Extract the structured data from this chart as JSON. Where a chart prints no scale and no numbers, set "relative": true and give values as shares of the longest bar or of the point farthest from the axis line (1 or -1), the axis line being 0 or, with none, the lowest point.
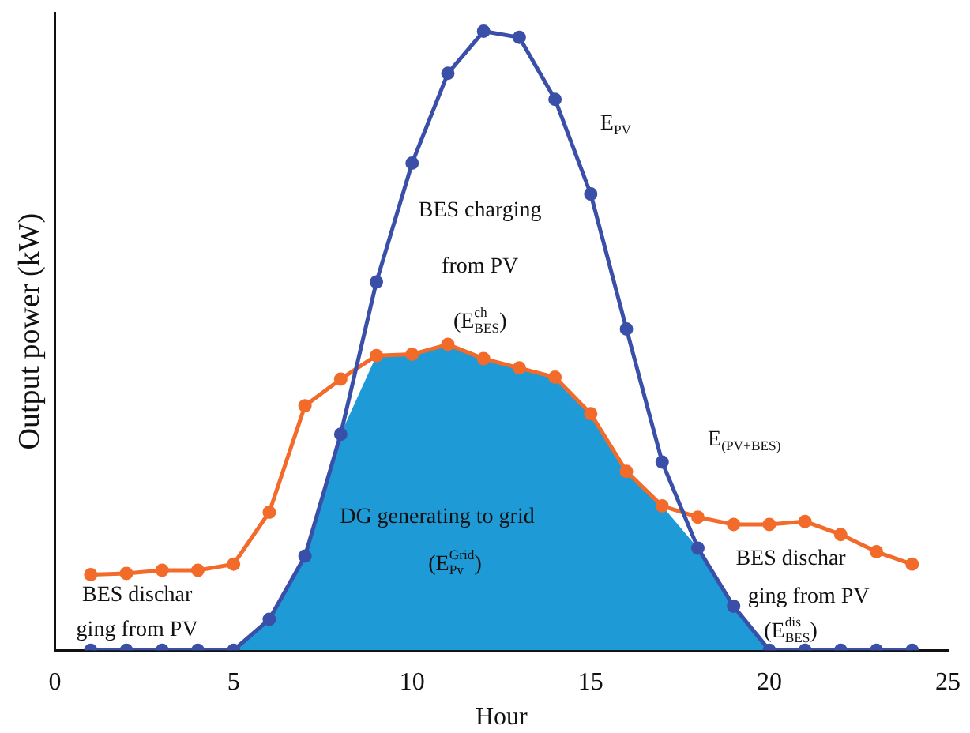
{
  "chart_data": {
    "type": "line",
    "relative": true,
    "xlabel": "Hour",
    "ylabel": "Output power (kW)",
    "xlim": [
      0,
      25
    ],
    "xticks": [
      0,
      5,
      10,
      15,
      20,
      25
    ],
    "grid": false,
    "legend": false,
    "marker": "circle",
    "line_style": "solid",
    "series": [
      {
        "type": "area",
        "marker": "none",
        "color": "#1e9ad6",
        "x": [
          5,
          6,
          7,
          8,
          9,
          10,
          11,
          12,
          13,
          14,
          15,
          16,
          17,
          18,
          19,
          20
        ],
        "values": [
          0,
          0.05,
          0.152,
          0.349,
          0.476,
          0.478,
          0.494,
          0.471,
          0.456,
          0.441,
          0.382,
          0.289,
          0.233,
          0.165,
          0.071,
          0
        ]
      },
      {
        "color": "#3a4fa8",
        "x": [
          1,
          2,
          3,
          4,
          5,
          6,
          7,
          8,
          9,
          10,
          11,
          12,
          13,
          14,
          15,
          16,
          17,
          18,
          19,
          20,
          21,
          22,
          23,
          24
        ],
        "values": [
          0,
          0,
          0,
          0,
          0,
          0.05,
          0.152,
          0.349,
          0.595,
          0.787,
          0.932,
          1,
          0.99,
          0.89,
          0.737,
          0.519,
          0.304,
          0.165,
          0.071,
          0,
          0,
          0,
          0,
          0
        ]
      },
      {
        "color": "#f26b2a",
        "x": [
          1,
          2,
          3,
          4,
          5,
          6,
          7,
          8,
          9,
          10,
          11,
          12,
          13,
          14,
          15,
          16,
          17,
          18,
          19,
          20,
          21,
          22,
          23,
          24
        ],
        "values": [
          0.122,
          0.124,
          0.129,
          0.129,
          0.139,
          0.223,
          0.395,
          0.438,
          0.476,
          0.478,
          0.494,
          0.471,
          0.456,
          0.441,
          0.382,
          0.289,
          0.233,
          0.215,
          0.203,
          0.203,
          0.208,
          0.187,
          0.159,
          0.139
        ]
      }
    ],
    "annotations": [
      "E$_{PV}$",
      "BES charging",
      "from PV",
      "(E$^{ch}$$_{BES}$)",
      "E$_{(PV+BES)}$",
      "DG generating to grid",
      "(E$^{Grid}$$_{Pv}$)",
      "BES dischar",
      "ging from PV",
      "BES dischar",
      "ging from PV",
      "(E$^{dis}$$_{BES}$)"
    ]
  }
}
